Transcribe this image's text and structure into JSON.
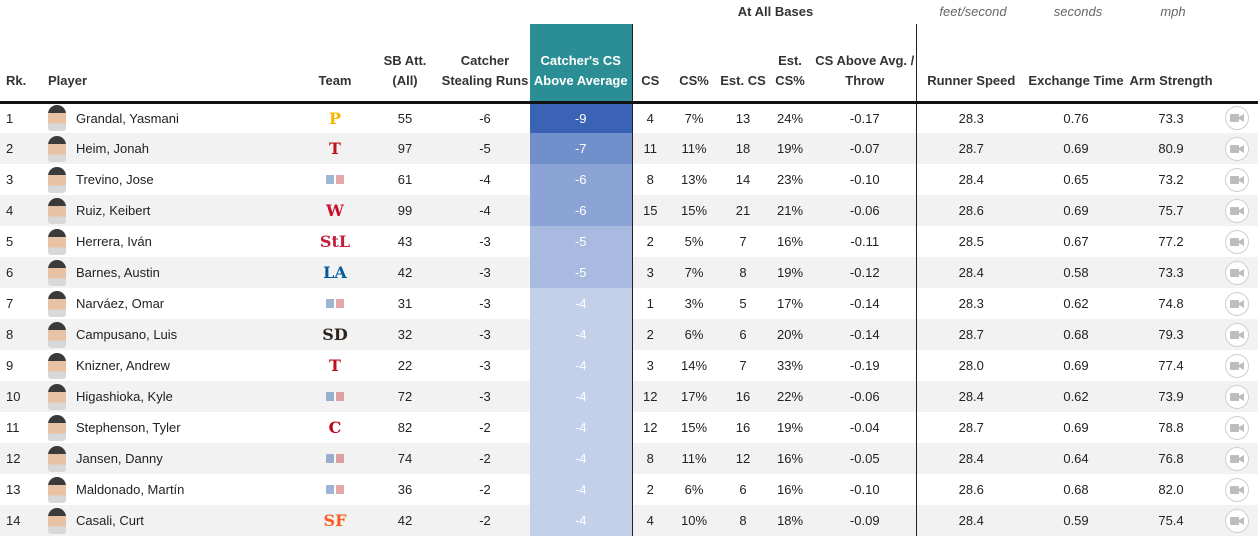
{
  "header": {
    "group_at_all_bases": "At All Bases",
    "unit_runner_speed": "feet/second",
    "unit_exchange_time": "seconds",
    "unit_arm_strength": "mph",
    "columns": {
      "rank": "Rk.",
      "player": "Player",
      "team": "Team",
      "sb_att": "SB Att. (All)",
      "catcher_stealing_runs": "Catcher Stealing Runs",
      "cs_above_average": "Catcher's CS Above Average",
      "cs": "CS",
      "cs_pct": "CS%",
      "est_cs": "Est. CS",
      "est_cs_pct": "Est. CS%",
      "cs_above_avg_throw": "CS Above Avg. / Throw",
      "runner_speed": "Runner Speed",
      "exchange_time": "Exchange Time",
      "arm_strength": "Arm Strength"
    }
  },
  "colors": {
    "highlight_header": "#2b8e95",
    "cs_scale_strong": "#3a63b5",
    "cs_scale_weak": "#c3d0ea"
  },
  "rows": [
    {
      "rank": "1",
      "player": "Grandal, Yasmani",
      "team": "Pirates",
      "team_logo": "P",
      "team_color": "#f5b500",
      "sb_att": "55",
      "stealing_runs": "-6",
      "cs_above_avg": "-9",
      "cs": "4",
      "cs_pct": "7%",
      "est_cs": "13",
      "est_cs_pct": "24%",
      "cs_per_throw": "-0.17",
      "runner_speed": "28.3",
      "exchange_time": "0.76",
      "arm_strength": "73.3"
    },
    {
      "rank": "2",
      "player": "Heim, Jonah",
      "team": "Rangers",
      "team_logo": "T",
      "team_color": "#c0111f",
      "sb_att": "97",
      "stealing_runs": "-5",
      "cs_above_avg": "-7",
      "cs": "11",
      "cs_pct": "11%",
      "est_cs": "18",
      "est_cs_pct": "19%",
      "cs_per_throw": "-0.07",
      "runner_speed": "28.7",
      "exchange_time": "0.69",
      "arm_strength": "80.9"
    },
    {
      "rank": "3",
      "player": "Trevino, Jose",
      "team": "MLB",
      "team_logo": "",
      "team_color": "#2a5aa0",
      "sb_att": "61",
      "stealing_runs": "-4",
      "cs_above_avg": "-6",
      "cs": "8",
      "cs_pct": "13%",
      "est_cs": "14",
      "est_cs_pct": "23%",
      "cs_per_throw": "-0.10",
      "runner_speed": "28.4",
      "exchange_time": "0.65",
      "arm_strength": "73.2"
    },
    {
      "rank": "4",
      "player": "Ruiz, Keibert",
      "team": "Nationals",
      "team_logo": "W",
      "team_color": "#c8102e",
      "sb_att": "99",
      "stealing_runs": "-4",
      "cs_above_avg": "-6",
      "cs": "15",
      "cs_pct": "15%",
      "est_cs": "21",
      "est_cs_pct": "21%",
      "cs_per_throw": "-0.06",
      "runner_speed": "28.6",
      "exchange_time": "0.69",
      "arm_strength": "75.7"
    },
    {
      "rank": "5",
      "player": "Herrera, Iván",
      "team": "Cardinals",
      "team_logo": "StL",
      "team_color": "#c41e3a",
      "sb_att": "43",
      "stealing_runs": "-3",
      "cs_above_avg": "-5",
      "cs": "2",
      "cs_pct": "5%",
      "est_cs": "7",
      "est_cs_pct": "16%",
      "cs_per_throw": "-0.11",
      "runner_speed": "28.5",
      "exchange_time": "0.67",
      "arm_strength": "77.2"
    },
    {
      "rank": "6",
      "player": "Barnes, Austin",
      "team": "Dodgers",
      "team_logo": "LA",
      "team_color": "#005a9c",
      "sb_att": "42",
      "stealing_runs": "-3",
      "cs_above_avg": "-5",
      "cs": "3",
      "cs_pct": "7%",
      "est_cs": "8",
      "est_cs_pct": "19%",
      "cs_per_throw": "-0.12",
      "runner_speed": "28.4",
      "exchange_time": "0.58",
      "arm_strength": "73.3"
    },
    {
      "rank": "7",
      "player": "Narváez, Omar",
      "team": "MLB",
      "team_logo": "",
      "team_color": "#2a5aa0",
      "sb_att": "31",
      "stealing_runs": "-3",
      "cs_above_avg": "-4",
      "cs": "1",
      "cs_pct": "3%",
      "est_cs": "5",
      "est_cs_pct": "17%",
      "cs_per_throw": "-0.14",
      "runner_speed": "28.3",
      "exchange_time": "0.62",
      "arm_strength": "74.8"
    },
    {
      "rank": "8",
      "player": "Campusano, Luis",
      "team": "Padres",
      "team_logo": "SD",
      "team_color": "#2f241d",
      "sb_att": "32",
      "stealing_runs": "-3",
      "cs_above_avg": "-4",
      "cs": "2",
      "cs_pct": "6%",
      "est_cs": "6",
      "est_cs_pct": "20%",
      "cs_per_throw": "-0.14",
      "runner_speed": "28.7",
      "exchange_time": "0.68",
      "arm_strength": "79.3"
    },
    {
      "rank": "9",
      "player": "Knizner, Andrew",
      "team": "Rangers",
      "team_logo": "T",
      "team_color": "#c0111f",
      "sb_att": "22",
      "stealing_runs": "-3",
      "cs_above_avg": "-4",
      "cs": "3",
      "cs_pct": "14%",
      "est_cs": "7",
      "est_cs_pct": "33%",
      "cs_per_throw": "-0.19",
      "runner_speed": "28.0",
      "exchange_time": "0.69",
      "arm_strength": "77.4"
    },
    {
      "rank": "10",
      "player": "Higashioka, Kyle",
      "team": "MLB",
      "team_logo": "",
      "team_color": "#2a5aa0",
      "sb_att": "72",
      "stealing_runs": "-3",
      "cs_above_avg": "-4",
      "cs": "12",
      "cs_pct": "17%",
      "est_cs": "16",
      "est_cs_pct": "22%",
      "cs_per_throw": "-0.06",
      "runner_speed": "28.4",
      "exchange_time": "0.62",
      "arm_strength": "73.9"
    },
    {
      "rank": "11",
      "player": "Stephenson, Tyler",
      "team": "Reds",
      "team_logo": "C",
      "team_color": "#c6011f",
      "sb_att": "82",
      "stealing_runs": "-2",
      "cs_above_avg": "-4",
      "cs": "12",
      "cs_pct": "15%",
      "est_cs": "16",
      "est_cs_pct": "19%",
      "cs_per_throw": "-0.04",
      "runner_speed": "28.7",
      "exchange_time": "0.69",
      "arm_strength": "78.8"
    },
    {
      "rank": "12",
      "player": "Jansen, Danny",
      "team": "MLB",
      "team_logo": "",
      "team_color": "#2a5aa0",
      "sb_att": "74",
      "stealing_runs": "-2",
      "cs_above_avg": "-4",
      "cs": "8",
      "cs_pct": "11%",
      "est_cs": "12",
      "est_cs_pct": "16%",
      "cs_per_throw": "-0.05",
      "runner_speed": "28.4",
      "exchange_time": "0.64",
      "arm_strength": "76.8"
    },
    {
      "rank": "13",
      "player": "Maldonado, Martín",
      "team": "MLB",
      "team_logo": "",
      "team_color": "#2a5aa0",
      "sb_att": "36",
      "stealing_runs": "-2",
      "cs_above_avg": "-4",
      "cs": "2",
      "cs_pct": "6%",
      "est_cs": "6",
      "est_cs_pct": "16%",
      "cs_per_throw": "-0.10",
      "runner_speed": "28.6",
      "exchange_time": "0.68",
      "arm_strength": "82.0"
    },
    {
      "rank": "14",
      "player": "Casali, Curt",
      "team": "Giants",
      "team_logo": "SF",
      "team_color": "#fd5a1e",
      "sb_att": "42",
      "stealing_runs": "-2",
      "cs_above_avg": "-4",
      "cs": "4",
      "cs_pct": "10%",
      "est_cs": "8",
      "est_cs_pct": "18%",
      "cs_per_throw": "-0.09",
      "runner_speed": "28.4",
      "exchange_time": "0.59",
      "arm_strength": "75.4"
    }
  ]
}
